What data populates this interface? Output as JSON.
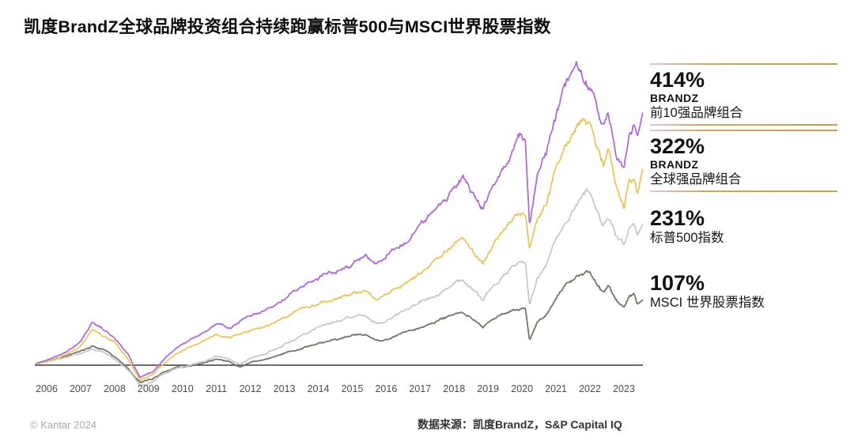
{
  "title": "凯度BrandZ全球品牌投资组合持续跑赢标普500与MSCI世界股票指数",
  "legend": {
    "items": [
      {
        "value": "414%",
        "sub1": "BRANDZ",
        "sub2": "前10强品牌组合",
        "boxed": true
      },
      {
        "value": "322%",
        "sub1": "BRANDZ",
        "sub2": "全球强品牌组合",
        "boxed": true
      },
      {
        "value": "231%",
        "sub1": "",
        "sub2": "标普500指数",
        "boxed": false
      },
      {
        "value": "107%",
        "sub1": "",
        "sub2": "MSCI 世界股票指数",
        "boxed": false
      }
    ]
  },
  "footer": {
    "copyright": "© Kantar 2024",
    "source": "数据来源：凯度BrandZ，S&P Capital IQ"
  },
  "colors": {
    "top10": "#AE6BDB",
    "strong": "#E7C75C",
    "sp500": "#C9C9C9",
    "msci": "#75756A",
    "baseline": "#3c3c3c",
    "gold_rule": "#C9A85A"
  },
  "chart_data": {
    "type": "line",
    "title": "凯度BrandZ全球品牌投资组合持续跑赢标普500与MSCI世界股票指数",
    "xlabel": "",
    "ylabel": "",
    "unit": "%",
    "x_ticks": [
      "2006",
      "2007",
      "2008",
      "2009",
      "2010",
      "2011",
      "2012",
      "2013",
      "2014",
      "2015",
      "2016",
      "2017",
      "2018",
      "2019",
      "2020",
      "2021",
      "2022",
      "2023"
    ],
    "x_range": [
      2005.7,
      2023.55
    ],
    "ylim": [
      -40,
      500
    ],
    "baseline_value": 0,
    "grid": false,
    "legend_position": "right",
    "series": [
      {
        "name": "BRANDZ 前10强品牌组合",
        "final_label": "414%",
        "final_value": 414,
        "color": "#AE6BDB",
        "points": [
          [
            2005.7,
            3
          ],
          [
            2006,
            8
          ],
          [
            2006.5,
            20
          ],
          [
            2007,
            38
          ],
          [
            2007.35,
            70
          ],
          [
            2007.7,
            58
          ],
          [
            2008,
            45
          ],
          [
            2008.4,
            18
          ],
          [
            2008.75,
            -20
          ],
          [
            2009.1,
            -12
          ],
          [
            2009.4,
            6
          ],
          [
            2009.8,
            28
          ],
          [
            2010.2,
            40
          ],
          [
            2010.6,
            52
          ],
          [
            2011,
            68
          ],
          [
            2011.4,
            62
          ],
          [
            2011.7,
            72
          ],
          [
            2012,
            80
          ],
          [
            2012.5,
            90
          ],
          [
            2013,
            108
          ],
          [
            2013.5,
            128
          ],
          [
            2014,
            142
          ],
          [
            2014.5,
            155
          ],
          [
            2015,
            168
          ],
          [
            2015.4,
            178
          ],
          [
            2015.7,
            165
          ],
          [
            2016,
            178
          ],
          [
            2016.5,
            200
          ],
          [
            2017,
            228
          ],
          [
            2017.5,
            258
          ],
          [
            2018,
            292
          ],
          [
            2018.25,
            308
          ],
          [
            2018.6,
            278
          ],
          [
            2018.85,
            258
          ],
          [
            2019.1,
            290
          ],
          [
            2019.5,
            330
          ],
          [
            2019.9,
            372
          ],
          [
            2020.1,
            375
          ],
          [
            2020.22,
            232
          ],
          [
            2020.45,
            310
          ],
          [
            2020.7,
            345
          ],
          [
            2021,
            415
          ],
          [
            2021.3,
            462
          ],
          [
            2021.6,
            486
          ],
          [
            2021.85,
            470
          ],
          [
            2022.1,
            445
          ],
          [
            2022.35,
            395
          ],
          [
            2022.55,
            415
          ],
          [
            2022.75,
            355
          ],
          [
            2023,
            325
          ],
          [
            2023.15,
            385
          ],
          [
            2023.3,
            398
          ],
          [
            2023.4,
            372
          ],
          [
            2023.55,
            414
          ]
        ]
      },
      {
        "name": "BRANDZ 全球强品牌组合",
        "final_label": "322%",
        "final_value": 322,
        "color": "#E7C75C",
        "points": [
          [
            2005.7,
            2
          ],
          [
            2006,
            6
          ],
          [
            2006.5,
            16
          ],
          [
            2007,
            32
          ],
          [
            2007.35,
            58
          ],
          [
            2007.7,
            48
          ],
          [
            2008,
            38
          ],
          [
            2008.4,
            10
          ],
          [
            2008.75,
            -24
          ],
          [
            2009.1,
            -16
          ],
          [
            2009.4,
            0
          ],
          [
            2009.8,
            18
          ],
          [
            2010.2,
            28
          ],
          [
            2010.6,
            40
          ],
          [
            2011,
            52
          ],
          [
            2011.4,
            44
          ],
          [
            2011.7,
            52
          ],
          [
            2012,
            58
          ],
          [
            2012.5,
            66
          ],
          [
            2013,
            80
          ],
          [
            2013.5,
            92
          ],
          [
            2014,
            102
          ],
          [
            2014.5,
            110
          ],
          [
            2015,
            118
          ],
          [
            2015.4,
            124
          ],
          [
            2015.7,
            108
          ],
          [
            2016,
            118
          ],
          [
            2016.5,
            132
          ],
          [
            2017,
            152
          ],
          [
            2017.5,
            176
          ],
          [
            2018,
            200
          ],
          [
            2018.25,
            212
          ],
          [
            2018.6,
            185
          ],
          [
            2018.85,
            168
          ],
          [
            2019.1,
            192
          ],
          [
            2019.5,
            222
          ],
          [
            2019.9,
            248
          ],
          [
            2020.1,
            250
          ],
          [
            2020.22,
            193
          ],
          [
            2020.45,
            235
          ],
          [
            2020.7,
            262
          ],
          [
            2021,
            318
          ],
          [
            2021.3,
            358
          ],
          [
            2021.6,
            390
          ],
          [
            2021.8,
            405
          ],
          [
            2022,
            392
          ],
          [
            2022.2,
            358
          ],
          [
            2022.4,
            330
          ],
          [
            2022.55,
            352
          ],
          [
            2022.75,
            295
          ],
          [
            2023,
            258
          ],
          [
            2023.15,
            300
          ],
          [
            2023.3,
            308
          ],
          [
            2023.4,
            282
          ],
          [
            2023.55,
            322
          ]
        ]
      },
      {
        "name": "标普500指数",
        "final_label": "231%",
        "final_value": 231,
        "color": "#C9C9C9",
        "points": [
          [
            2005.7,
            2
          ],
          [
            2006,
            5
          ],
          [
            2006.5,
            12
          ],
          [
            2007,
            20
          ],
          [
            2007.35,
            26
          ],
          [
            2007.7,
            20
          ],
          [
            2008,
            10
          ],
          [
            2008.4,
            -8
          ],
          [
            2008.75,
            -33
          ],
          [
            2009.1,
            -28
          ],
          [
            2009.4,
            -15
          ],
          [
            2009.8,
            -5
          ],
          [
            2010.2,
            0
          ],
          [
            2010.6,
            5
          ],
          [
            2011,
            15
          ],
          [
            2011.4,
            10
          ],
          [
            2011.7,
            2
          ],
          [
            2012,
            12
          ],
          [
            2012.5,
            20
          ],
          [
            2013,
            35
          ],
          [
            2013.5,
            48
          ],
          [
            2014,
            62
          ],
          [
            2014.5,
            72
          ],
          [
            2015,
            80
          ],
          [
            2015.4,
            82
          ],
          [
            2015.7,
            70
          ],
          [
            2016,
            72
          ],
          [
            2016.5,
            88
          ],
          [
            2017,
            102
          ],
          [
            2017.5,
            118
          ],
          [
            2018,
            135
          ],
          [
            2018.25,
            140
          ],
          [
            2018.6,
            125
          ],
          [
            2018.85,
            108
          ],
          [
            2019.1,
            128
          ],
          [
            2019.5,
            150
          ],
          [
            2019.9,
            170
          ],
          [
            2020.1,
            172
          ],
          [
            2020.22,
            102
          ],
          [
            2020.45,
            140
          ],
          [
            2020.7,
            160
          ],
          [
            2021,
            205
          ],
          [
            2021.3,
            235
          ],
          [
            2021.6,
            262
          ],
          [
            2021.9,
            285
          ],
          [
            2022,
            280
          ],
          [
            2022.2,
            250
          ],
          [
            2022.4,
            228
          ],
          [
            2022.55,
            242
          ],
          [
            2022.75,
            215
          ],
          [
            2023,
            198
          ],
          [
            2023.15,
            225
          ],
          [
            2023.3,
            232
          ],
          [
            2023.4,
            212
          ],
          [
            2023.55,
            231
          ]
        ]
      },
      {
        "name": "MSCI 世界股票指数",
        "final_label": "107%",
        "final_value": 107,
        "color": "#75756A",
        "points": [
          [
            2005.7,
            2
          ],
          [
            2006,
            6
          ],
          [
            2006.5,
            14
          ],
          [
            2007,
            24
          ],
          [
            2007.35,
            30
          ],
          [
            2007.7,
            24
          ],
          [
            2008,
            14
          ],
          [
            2008.4,
            -5
          ],
          [
            2008.75,
            -28
          ],
          [
            2009.1,
            -23
          ],
          [
            2009.4,
            -12
          ],
          [
            2009.8,
            -4
          ],
          [
            2010.2,
            -2
          ],
          [
            2010.6,
            2
          ],
          [
            2011,
            10
          ],
          [
            2011.4,
            5
          ],
          [
            2011.7,
            -3
          ],
          [
            2012,
            5
          ],
          [
            2012.5,
            10
          ],
          [
            2013,
            20
          ],
          [
            2013.5,
            28
          ],
          [
            2014,
            36
          ],
          [
            2014.5,
            42
          ],
          [
            2015,
            48
          ],
          [
            2015.4,
            50
          ],
          [
            2015.7,
            40
          ],
          [
            2016,
            42
          ],
          [
            2016.5,
            52
          ],
          [
            2017,
            62
          ],
          [
            2017.5,
            73
          ],
          [
            2018,
            84
          ],
          [
            2018.25,
            88
          ],
          [
            2018.6,
            76
          ],
          [
            2018.85,
            62
          ],
          [
            2019.1,
            74
          ],
          [
            2019.5,
            84
          ],
          [
            2019.9,
            92
          ],
          [
            2020.1,
            93
          ],
          [
            2020.22,
            42
          ],
          [
            2020.45,
            72
          ],
          [
            2020.7,
            82
          ],
          [
            2021,
            112
          ],
          [
            2021.3,
            132
          ],
          [
            2021.6,
            145
          ],
          [
            2021.9,
            153
          ],
          [
            2022,
            150
          ],
          [
            2022.2,
            132
          ],
          [
            2022.4,
            118
          ],
          [
            2022.55,
            128
          ],
          [
            2022.75,
            108
          ],
          [
            2023,
            95
          ],
          [
            2023.15,
            112
          ],
          [
            2023.3,
            118
          ],
          [
            2023.4,
            100
          ],
          [
            2023.55,
            107
          ]
        ]
      }
    ]
  }
}
